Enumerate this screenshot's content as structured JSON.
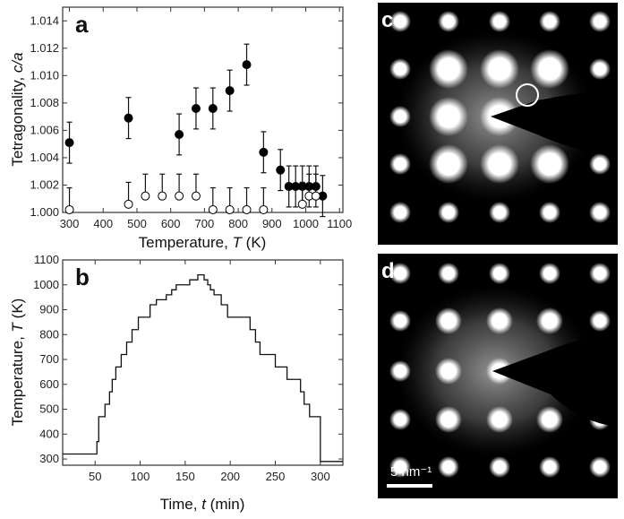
{
  "chart_data": [
    {
      "panel": "a",
      "type": "scatter",
      "xlabel": "Temperature, ",
      "xlabel_var": "T",
      "xlabel_unit": " (K)",
      "ylabel": "Tetragonality, ",
      "ylabel_var": "c/a",
      "xlim": [
        280,
        1110
      ],
      "ylim": [
        1.0,
        1.015
      ],
      "xticks": [
        300,
        400,
        500,
        600,
        700,
        800,
        900,
        1000,
        1100
      ],
      "yticks": [
        "1.000",
        "1.002",
        "1.004",
        "1.006",
        "1.008",
        "1.010",
        "1.012",
        "1.014"
      ],
      "series": [
        {
          "name": "filled",
          "marker": "filled-circle",
          "x": [
            300,
            475,
            625,
            675,
            725,
            775,
            825,
            875,
            925,
            950,
            970,
            990,
            1010,
            1030,
            1050
          ],
          "y": [
            1.0051,
            1.0069,
            1.0057,
            1.0076,
            1.0076,
            1.0089,
            1.0108,
            1.0044,
            1.0031,
            1.0019,
            1.0019,
            1.0019,
            1.0019,
            1.0019,
            1.0012
          ],
          "err": [
            0.0015,
            0.0015,
            0.0015,
            0.0015,
            0.0015,
            0.0015,
            0.0015,
            0.0015,
            0.0015,
            0.0015,
            0.0015,
            0.0015,
            0.0015,
            0.0015,
            0.0015
          ]
        },
        {
          "name": "open",
          "marker": "open-circle",
          "x": [
            300,
            475,
            525,
            575,
            625,
            675,
            725,
            775,
            825,
            875,
            990,
            1010,
            1030
          ],
          "y": [
            1.0002,
            1.0006,
            1.0012,
            1.0012,
            1.0012,
            1.0012,
            1.0002,
            1.0002,
            1.0002,
            1.0002,
            1.0006,
            1.0012,
            1.0012
          ],
          "err": [
            0.0016,
            0.0016,
            0.0016,
            0.0016,
            0.0016,
            0.0016,
            0.0016,
            0.0016,
            0.0016,
            0.0016,
            0.0016,
            0.0016,
            0.0016
          ]
        }
      ]
    },
    {
      "panel": "b",
      "type": "line",
      "xlabel": "Time, ",
      "xlabel_var": "t",
      "xlabel_unit": " (min)",
      "ylabel": "Temperature, ",
      "ylabel_var": "T",
      "ylabel_unit": " (K)",
      "xlim": [
        14,
        325
      ],
      "ylim": [
        275,
        1100
      ],
      "xticks": [
        50,
        100,
        150,
        200,
        250,
        300
      ],
      "yticks": [
        300,
        400,
        500,
        600,
        700,
        800,
        900,
        1000,
        1100
      ],
      "steps": [
        [
          14,
          320
        ],
        [
          52,
          370
        ],
        [
          54,
          470
        ],
        [
          61,
          520
        ],
        [
          66,
          570
        ],
        [
          69,
          620
        ],
        [
          73,
          670
        ],
        [
          79,
          720
        ],
        [
          85,
          770
        ],
        [
          91,
          820
        ],
        [
          98,
          870
        ],
        [
          111,
          920
        ],
        [
          118,
          940
        ],
        [
          129,
          960
        ],
        [
          135,
          980
        ],
        [
          140,
          1000
        ],
        [
          155,
          1020
        ],
        [
          164,
          1040
        ],
        [
          171,
          1020
        ],
        [
          175,
          1000
        ],
        [
          178,
          980
        ],
        [
          182,
          960
        ],
        [
          190,
          920
        ],
        [
          197,
          870
        ],
        [
          222,
          820
        ],
        [
          228,
          770
        ],
        [
          233,
          720
        ],
        [
          250,
          670
        ],
        [
          263,
          620
        ],
        [
          278,
          570
        ],
        [
          282,
          520
        ],
        [
          288,
          470
        ],
        [
          300,
          290
        ],
        [
          325,
          290
        ]
      ]
    }
  ],
  "images": {
    "c": {
      "label": "c"
    },
    "d": {
      "label": "d",
      "scale_bar": "5 nm⁻¹"
    }
  }
}
